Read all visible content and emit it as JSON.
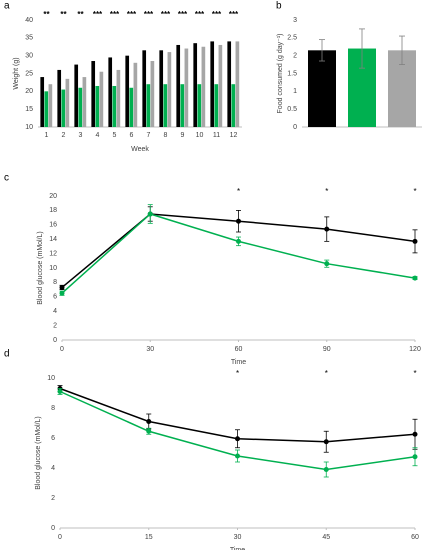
{
  "chart_data": [
    {
      "type": "bar",
      "label": "a",
      "ylabel": "Weight (g)",
      "xlabel": "Week",
      "categories": [
        "1",
        "2",
        "3",
        "4",
        "5",
        "6",
        "7",
        "8",
        "9",
        "10",
        "11",
        "12"
      ],
      "series": [
        {
          "color": "#000000",
          "values": [
            24,
            26,
            27.5,
            28.5,
            29.5,
            30,
            31.5,
            31.5,
            33,
            33.5,
            34,
            34
          ]
        },
        {
          "color": "#00b050",
          "values": [
            20,
            20.5,
            21,
            21.5,
            21.5,
            21,
            22,
            22,
            22,
            22,
            22,
            22
          ]
        },
        {
          "color": "#a6a6a6",
          "values": [
            22,
            23.5,
            24,
            25.5,
            26,
            28,
            28.5,
            31,
            32,
            32.5,
            33,
            34
          ]
        }
      ],
      "annotations": [
        "**",
        "**",
        "**",
        "***",
        "***",
        "***",
        "***",
        "***",
        "***",
        "***",
        "***",
        "***"
      ],
      "ylim": [
        10,
        40
      ],
      "yticks": [
        10,
        15,
        20,
        25,
        30,
        35,
        40
      ]
    },
    {
      "type": "bar",
      "label": "b",
      "ylabel": "Food consumed (g day⁻¹)",
      "values": [
        2.15,
        2.2,
        2.15
      ],
      "errors": [
        0.3,
        0.55,
        0.4
      ],
      "colors": [
        "#000000",
        "#00b050",
        "#a6a6a6"
      ],
      "ylim": [
        0,
        3
      ],
      "yticks": [
        0,
        0.5,
        1,
        1.5,
        2,
        2.5,
        3
      ]
    },
    {
      "type": "line",
      "label": "c",
      "ylabel": "Blood glucose (mMol/L)",
      "xlabel": "Time",
      "x": [
        0,
        30,
        60,
        90,
        120
      ],
      "series": [
        {
          "color": "#000000",
          "values": [
            7.3,
            17.5,
            16.5,
            15.4,
            13.7
          ],
          "errors": [
            0.3,
            1,
            1.5,
            1.7,
            1.6
          ]
        },
        {
          "color": "#00b050",
          "values": [
            6.5,
            17.5,
            13.7,
            10.6,
            8.6
          ],
          "errors": [
            0.3,
            1.3,
            0.6,
            0.5,
            0.2
          ]
        }
      ],
      "annotations": [
        {
          "x": 60,
          "text": "*"
        },
        {
          "x": 90,
          "text": "*"
        },
        {
          "x": 120,
          "text": "*"
        }
      ],
      "xlim": [
        0,
        120
      ],
      "xticks": [
        0,
        30,
        60,
        90,
        120
      ],
      "ylim": [
        0,
        20
      ],
      "yticks": [
        0,
        2,
        4,
        6,
        8,
        10,
        12,
        14,
        16,
        18,
        20
      ]
    },
    {
      "type": "line",
      "label": "d",
      "ylabel": "Blood glucose (mMol/L)",
      "xlabel": "Time",
      "x": [
        0,
        15,
        30,
        45,
        60
      ],
      "series": [
        {
          "color": "#000000",
          "values": [
            9.3,
            7.1,
            5.95,
            5.75,
            6.25
          ],
          "errors": [
            0.2,
            0.5,
            0.6,
            0.7,
            1
          ]
        },
        {
          "color": "#00b050",
          "values": [
            9.1,
            6.45,
            4.8,
            3.9,
            4.75
          ],
          "errors": [
            0.2,
            0.2,
            0.4,
            0.5,
            0.6
          ]
        }
      ],
      "annotations": [
        {
          "x": 30,
          "text": "*"
        },
        {
          "x": 45,
          "text": "*"
        },
        {
          "x": 60,
          "text": "*"
        }
      ],
      "xlim": [
        0,
        60
      ],
      "xticks": [
        0,
        15,
        30,
        45,
        60
      ],
      "ylim": [
        0,
        10
      ],
      "yticks": [
        0,
        2,
        4,
        6,
        8,
        10
      ]
    }
  ]
}
